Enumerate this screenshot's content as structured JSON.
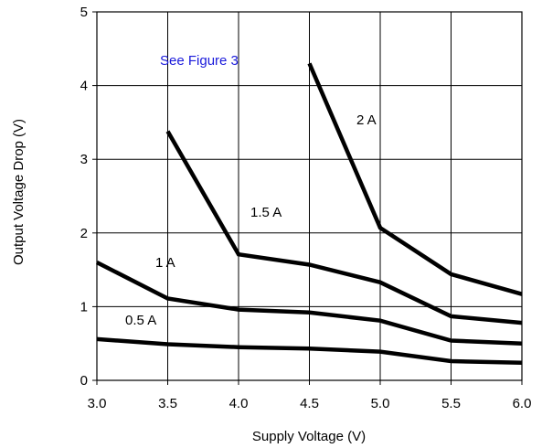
{
  "chart_data": {
    "type": "line",
    "xlabel": "Supply Voltage (V)",
    "ylabel": "Output Voltage Drop (V)",
    "xlim": [
      3.0,
      6.0
    ],
    "ylim": [
      0,
      5
    ],
    "xticks": [
      "3.0",
      "3.5",
      "4.0",
      "4.5",
      "5.0",
      "5.5",
      "6.0"
    ],
    "yticks": [
      "0",
      "1",
      "2",
      "3",
      "4",
      "5"
    ],
    "grid": true,
    "line_color": "#000000",
    "annotation": {
      "text": "See Figure 3",
      "color": "#1a1adb"
    },
    "series": [
      {
        "name": "0.5 A",
        "x": [
          3.0,
          3.5,
          4.0,
          4.5,
          5.0,
          5.5,
          6.0
        ],
        "y": [
          0.56,
          0.49,
          0.45,
          0.43,
          0.39,
          0.26,
          0.24
        ]
      },
      {
        "name": "1 A",
        "x": [
          3.0,
          3.5,
          4.0,
          4.5,
          5.0,
          5.5,
          6.0
        ],
        "y": [
          1.6,
          1.11,
          0.96,
          0.92,
          0.81,
          0.54,
          0.5
        ]
      },
      {
        "name": "1.5 A",
        "x": [
          3.5,
          4.0,
          4.5,
          5.0,
          5.5,
          6.0
        ],
        "y": [
          3.38,
          1.71,
          1.57,
          1.33,
          0.87,
          0.78
        ]
      },
      {
        "name": "2 A",
        "x": [
          4.5,
          5.0,
          5.5,
          6.0
        ],
        "y": [
          4.3,
          2.07,
          1.44,
          1.17
        ]
      }
    ]
  }
}
